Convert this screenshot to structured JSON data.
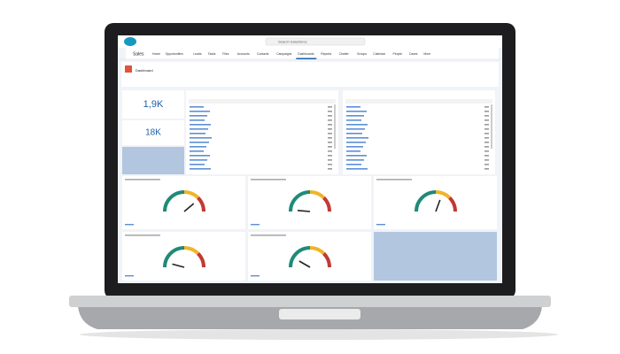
{
  "header": {
    "search": "Search Salesforce"
  },
  "nav": {
    "app": "Sales",
    "tabs": [
      "Home",
      "Opportunities",
      "Leads",
      "Tasks",
      "Files",
      "Accounts",
      "Contacts",
      "Campaigns",
      "Dashboards",
      "Reports",
      "Chatter",
      "Groups",
      "Calendar",
      "People",
      "Cases",
      "More"
    ],
    "active": "Dashboards"
  },
  "dashboard": {
    "title": "Dashboard"
  },
  "metrics": [
    {
      "value": "1,9K"
    },
    {
      "value": "18K"
    }
  ]
}
